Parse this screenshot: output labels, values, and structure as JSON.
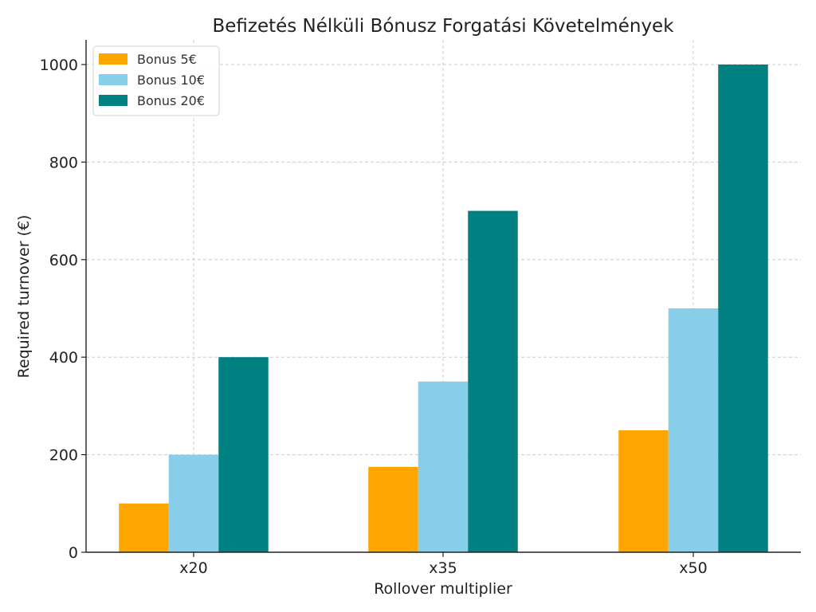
{
  "chart_data": {
    "type": "bar",
    "title": "Befizetés Nélküli Bónusz Forgatási Követelmények",
    "xlabel": "Rollover multiplier",
    "ylabel": "Required turnover (€)",
    "categories": [
      "x20",
      "x35",
      "x50"
    ],
    "series": [
      {
        "name": "Bonus 5€",
        "color": "#FFA500",
        "values": [
          100,
          175,
          250
        ]
      },
      {
        "name": "Bonus 10€",
        "color": "#87CEEB",
        "values": [
          200,
          350,
          500
        ]
      },
      {
        "name": "Bonus 20€",
        "color": "#008080",
        "values": [
          400,
          700,
          1000
        ]
      }
    ],
    "ylim": [
      0,
      1050
    ],
    "yticks": [
      0,
      200,
      400,
      600,
      800,
      1000
    ],
    "grid": true,
    "legend_position": "top-left"
  }
}
